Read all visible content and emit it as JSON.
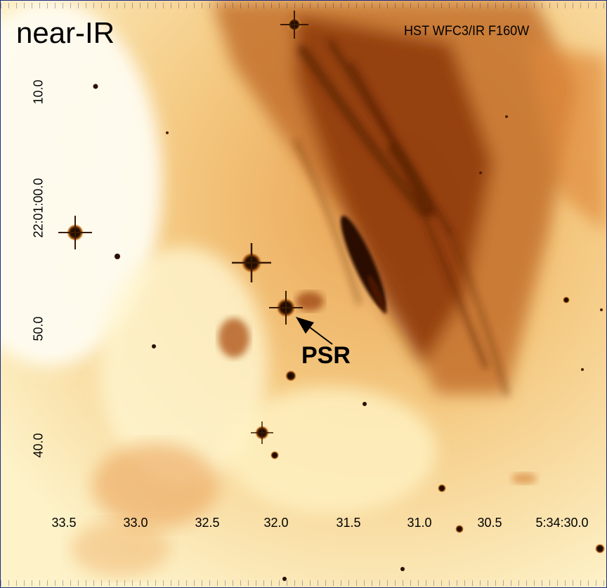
{
  "panel_label": "near-IR",
  "instrument": "HST WFC3/IR F160W",
  "source_label": "PSR",
  "ra_ticks": [
    "33.5",
    "33.0",
    "32.5",
    "32.0",
    "31.5",
    "31.0",
    "30.5",
    "5:34:30.0"
  ],
  "dec_ticks": [
    "10.0",
    "22:01:00.0",
    "50.0",
    "40.0"
  ],
  "colors": {
    "frame": "#1a2a8a",
    "background": "#fffef2",
    "nebula_light": "#fde9a0",
    "nebula_mid": "#e8a050",
    "nebula_dark": "#7a2f08",
    "stars": "#1a0a02"
  }
}
